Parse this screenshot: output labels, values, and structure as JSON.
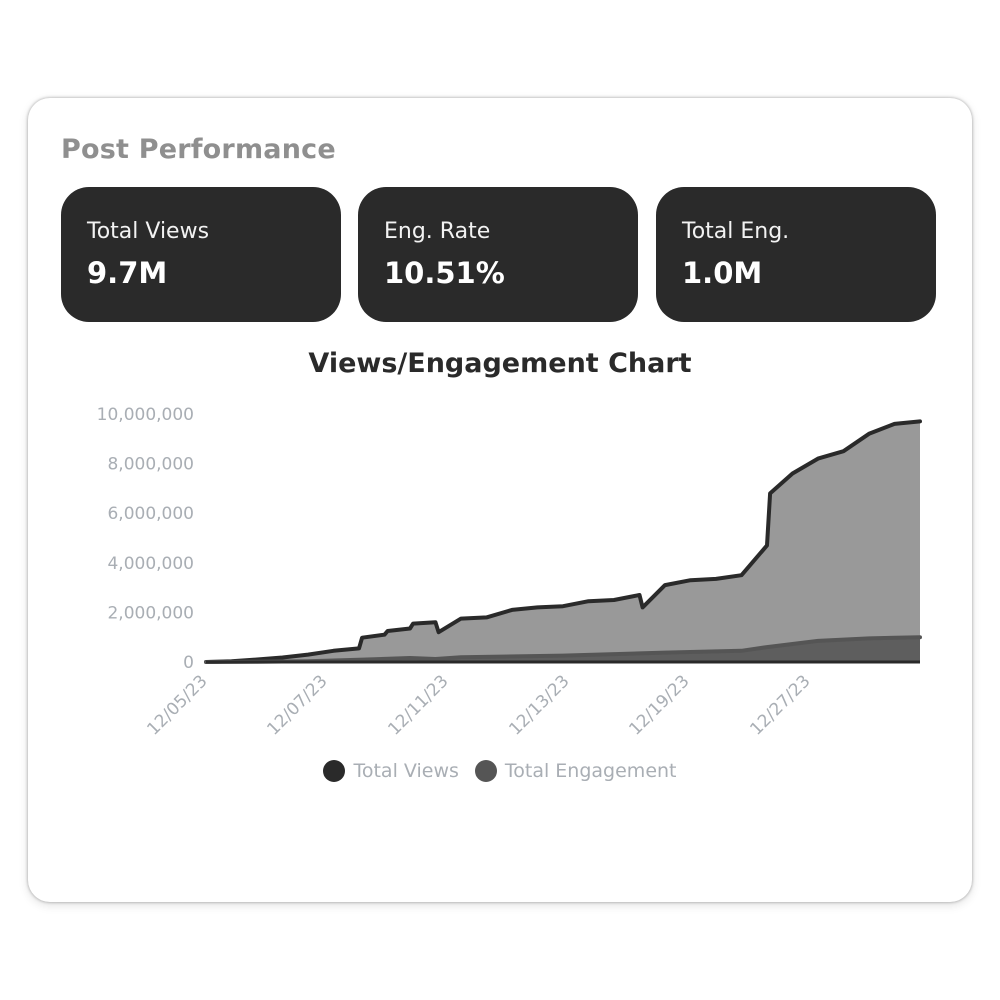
{
  "header": {
    "title": "Post Performance"
  },
  "metrics": [
    {
      "label": "Total Views",
      "value": "9.7M"
    },
    {
      "label": "Eng. Rate",
      "value": "10.51%"
    },
    {
      "label": "Total Eng.",
      "value": "1.0M"
    }
  ],
  "colors": {
    "card_dark": "#2a2a2a",
    "views_area": "#999999",
    "views_line": "#2a2a2a",
    "engagement_area": "#5e5e5e",
    "engagement_line": "#555555",
    "axis_text": "#a9aeb4"
  },
  "chart_data": {
    "type": "area",
    "title": "Views/Engagement Chart",
    "xlabel": "",
    "ylabel": "",
    "x_tick_labels": [
      "12/05/23",
      "12/07/23",
      "12/11/23",
      "12/13/23",
      "12/19/23",
      "12/27/23"
    ],
    "ylim": [
      0,
      10000000
    ],
    "y_ticks": [
      0,
      2000000,
      4000000,
      6000000,
      8000000,
      10000000
    ],
    "y_tick_labels": [
      "0",
      "2,000,000",
      "4,000,000",
      "6,000,000",
      "8,000,000",
      "10,000,000"
    ],
    "grid": false,
    "legend_position": "bottom-center",
    "series": [
      {
        "name": "Total Views",
        "color": "#2a2a2a",
        "points": [
          [
            "12/05/23",
            0
          ],
          [
            "12/06/23",
            30000
          ],
          [
            "12/07/23",
            100000
          ],
          [
            "12/08/23",
            180000
          ],
          [
            "12/09/23",
            300000
          ],
          [
            "12/10/23",
            450000
          ],
          [
            "12/11/23",
            550000
          ],
          [
            "12/11/23",
            980000
          ],
          [
            "12/12/23",
            1100000
          ],
          [
            "12/12/23",
            1250000
          ],
          [
            "12/13/23",
            1350000
          ],
          [
            "12/13/23",
            1550000
          ],
          [
            "12/14/23",
            1600000
          ],
          [
            "12/14/23",
            1200000
          ],
          [
            "12/15/23",
            1750000
          ],
          [
            "12/16/23",
            1800000
          ],
          [
            "12/17/23",
            2100000
          ],
          [
            "12/18/23",
            2200000
          ],
          [
            "12/19/23",
            2250000
          ],
          [
            "12/20/23",
            2450000
          ],
          [
            "12/21/23",
            2500000
          ],
          [
            "12/22/23",
            2700000
          ],
          [
            "12/22/23",
            2200000
          ],
          [
            "12/23/23",
            3100000
          ],
          [
            "12/24/23",
            3300000
          ],
          [
            "12/25/23",
            3350000
          ],
          [
            "12/26/23",
            3500000
          ],
          [
            "12/27/23",
            4700000
          ],
          [
            "12/27/23",
            6800000
          ],
          [
            "12/28/23",
            7600000
          ],
          [
            "12/29/23",
            8200000
          ],
          [
            "12/30/23",
            8500000
          ],
          [
            "12/31/23",
            9200000
          ],
          [
            "01/01/24",
            9600000
          ],
          [
            "01/02/24",
            9700000
          ]
        ]
      },
      {
        "name": "Total Engagement",
        "color": "#555555",
        "points": [
          [
            "12/05/23",
            0
          ],
          [
            "12/07/23",
            10000
          ],
          [
            "12/09/23",
            30000
          ],
          [
            "12/11/23",
            90000
          ],
          [
            "12/13/23",
            160000
          ],
          [
            "12/14/23",
            120000
          ],
          [
            "12/15/23",
            190000
          ],
          [
            "12/19/23",
            260000
          ],
          [
            "12/23/23",
            380000
          ],
          [
            "12/26/23",
            450000
          ],
          [
            "12/27/23",
            600000
          ],
          [
            "12/29/23",
            850000
          ],
          [
            "12/31/23",
            950000
          ],
          [
            "01/02/24",
            1000000
          ]
        ]
      }
    ]
  }
}
